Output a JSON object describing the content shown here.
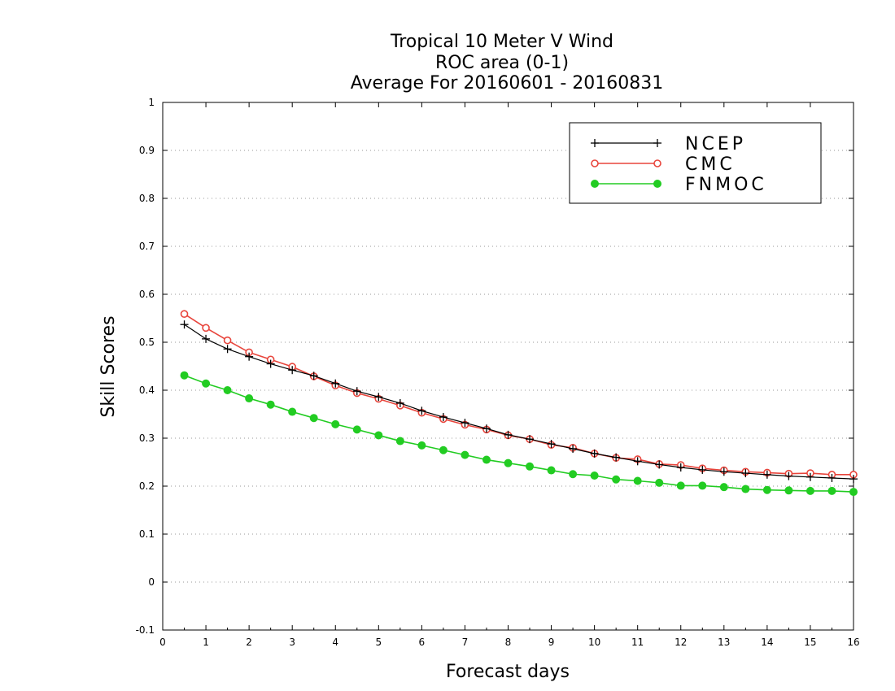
{
  "chart_data": {
    "type": "line",
    "title": [
      "Tropical 10 Meter V Wind",
      "ROC area (0-1)",
      "Average For 20160601 - 20160831"
    ],
    "xlabel": "Forecast days",
    "ylabel": "Skill Scores",
    "xlim": [
      0,
      16
    ],
    "ylim": [
      -0.1,
      1
    ],
    "xticks": [
      0,
      1,
      2,
      3,
      4,
      5,
      6,
      7,
      8,
      9,
      10,
      11,
      12,
      13,
      14,
      15,
      16
    ],
    "xtick_labels": [
      "0",
      "1",
      "2",
      "3",
      "4",
      "5",
      "6",
      "7",
      "8",
      "9",
      "10",
      "11",
      "12",
      "13",
      "14",
      "15",
      "16"
    ],
    "yticks": [
      -0.1,
      0,
      0.1,
      0.2,
      0.3,
      0.4,
      0.5,
      0.6,
      0.7,
      0.8,
      0.9,
      1
    ],
    "ytick_labels": [
      "-0.1",
      "0",
      "0.1",
      "0.2",
      "0.3",
      "0.4",
      "0.5",
      "0.6",
      "0.7",
      "0.8",
      "0.9",
      "1"
    ],
    "grid": "horizontal dotted",
    "legend_position": "top-right",
    "x": [
      0.5,
      1,
      1.5,
      2,
      2.5,
      3,
      3.5,
      4,
      4.5,
      5,
      5.5,
      6,
      6.5,
      7,
      7.5,
      8,
      8.5,
      9,
      9.5,
      10,
      10.5,
      11,
      11.5,
      12,
      12.5,
      13,
      13.5,
      14,
      14.5,
      15,
      15.5,
      16
    ],
    "series": [
      {
        "name": "NCEP",
        "color": "#000000",
        "marker": "plus",
        "values": [
          0.537,
          0.507,
          0.486,
          0.47,
          0.455,
          0.442,
          0.43,
          0.414,
          0.398,
          0.386,
          0.373,
          0.357,
          0.344,
          0.332,
          0.32,
          0.307,
          0.298,
          0.288,
          0.278,
          0.268,
          0.26,
          0.252,
          0.245,
          0.239,
          0.234,
          0.23,
          0.227,
          0.224,
          0.221,
          0.219,
          0.217,
          0.215
        ]
      },
      {
        "name": "CMC",
        "color": "#e8453c",
        "marker": "open-circle",
        "values": [
          0.559,
          0.53,
          0.504,
          0.479,
          0.464,
          0.449,
          0.429,
          0.41,
          0.394,
          0.382,
          0.368,
          0.353,
          0.34,
          0.328,
          0.318,
          0.306,
          0.298,
          0.286,
          0.28,
          0.268,
          0.259,
          0.256,
          0.246,
          0.244,
          0.237,
          0.233,
          0.23,
          0.228,
          0.226,
          0.227,
          0.224,
          0.224
        ]
      },
      {
        "name": "FNMOC",
        "color": "#22cc22",
        "marker": "filled-circle",
        "values": [
          0.431,
          0.414,
          0.4,
          0.383,
          0.37,
          0.355,
          0.342,
          0.329,
          0.318,
          0.306,
          0.294,
          0.285,
          0.275,
          0.265,
          0.255,
          0.248,
          0.241,
          0.233,
          0.225,
          0.222,
          0.214,
          0.211,
          0.207,
          0.201,
          0.201,
          0.198,
          0.194,
          0.192,
          0.191,
          0.19,
          0.19,
          0.188
        ]
      }
    ]
  }
}
